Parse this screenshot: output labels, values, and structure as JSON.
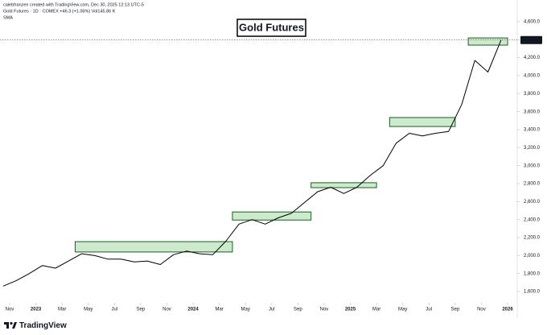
{
  "header": {
    "author_line": "calebfranzen created with TradingView.com, Dec 30, 2025 12:13 UTC-5",
    "symbol_line": "Gold Futures · 1D · COMEX  +46.3 (+1.06%)  Vol145.86 K",
    "indicator": "SMA"
  },
  "footer": {
    "brand": "TradingView"
  },
  "chart_data": {
    "type": "line",
    "title": "Gold Futures",
    "x": [
      "2022-10",
      "2022-11",
      "2022-12",
      "2023-01",
      "2023-02",
      "2023-03",
      "2023-04",
      "2023-05",
      "2023-06",
      "2023-07",
      "2023-08",
      "2023-09",
      "2023-10",
      "2023-11",
      "2023-12",
      "2024-01",
      "2024-02",
      "2024-03",
      "2024-04",
      "2024-05",
      "2024-06",
      "2024-07",
      "2024-08",
      "2024-09",
      "2024-10",
      "2024-11",
      "2024-12",
      "2025-01",
      "2025-02",
      "2025-03",
      "2025-04",
      "2025-05",
      "2025-06",
      "2025-07",
      "2025-08",
      "2025-09",
      "2025-10",
      "2025-11",
      "2025-12"
    ],
    "series": [
      {
        "name": "Gold Futures",
        "color": "#000000",
        "values": [
          1660,
          1720,
          1800,
          1890,
          1860,
          1940,
          2020,
          2000,
          1960,
          1960,
          1930,
          1940,
          1900,
          2010,
          2050,
          2020,
          2010,
          2160,
          2350,
          2400,
          2350,
          2420,
          2470,
          2590,
          2710,
          2760,
          2690,
          2760,
          2890,
          3000,
          3250,
          3360,
          3330,
          3360,
          3380,
          3680,
          4170,
          4040,
          4396.5
        ]
      }
    ],
    "zones": [
      {
        "x": [
          "2023-04",
          "2024-04"
        ],
        "y": [
          2040,
          2155
        ]
      },
      {
        "x": [
          "2024-04",
          "2024-10"
        ],
        "y": [
          2395,
          2485
        ]
      },
      {
        "x": [
          "2024-10",
          "2025-03"
        ],
        "y": [
          2755,
          2810
        ]
      },
      {
        "x": [
          "2025-04",
          "2025-09"
        ],
        "y": [
          3435,
          3535
        ]
      },
      {
        "x": [
          "2025-10",
          "2026-01"
        ],
        "y": [
          4340,
          4420
        ]
      }
    ],
    "zone_color": "#4caf50",
    "last_value": {
      "value": 4396.5,
      "label": "4,396.5"
    },
    "xlim": [
      "2022-11",
      "2026-01"
    ],
    "xticks": [
      {
        "value": "2022-11",
        "label": "Nov"
      },
      {
        "value": "2023-01",
        "label": "2023"
      },
      {
        "value": "2023-03",
        "label": "Mar"
      },
      {
        "value": "2023-05",
        "label": "May"
      },
      {
        "value": "2023-07",
        "label": "Jul"
      },
      {
        "value": "2023-09",
        "label": "Sep"
      },
      {
        "value": "2023-11",
        "label": "Nov"
      },
      {
        "value": "2024-01",
        "label": "2024"
      },
      {
        "value": "2024-03",
        "label": "Mar"
      },
      {
        "value": "2024-05",
        "label": "May"
      },
      {
        "value": "2024-07",
        "label": "Jul"
      },
      {
        "value": "2024-09",
        "label": "Sep"
      },
      {
        "value": "2024-11",
        "label": "Nov"
      },
      {
        "value": "2025-01",
        "label": "2025"
      },
      {
        "value": "2025-03",
        "label": "Mar"
      },
      {
        "value": "2025-05",
        "label": "May"
      },
      {
        "value": "2025-07",
        "label": "Jul"
      },
      {
        "value": "2025-09",
        "label": "Sep"
      },
      {
        "value": "2025-11",
        "label": "Nov"
      },
      {
        "value": "2026-01",
        "label": "2026"
      }
    ],
    "ylim": [
      1484,
      4770
    ],
    "yticks": [
      {
        "value": 1600,
        "label": "1,600.0"
      },
      {
        "value": 1800,
        "label": "1,800.0"
      },
      {
        "value": 2000,
        "label": "2,000.0"
      },
      {
        "value": 2200,
        "label": "2,200.0"
      },
      {
        "value": 2400,
        "label": "2,400.0"
      },
      {
        "value": 2600,
        "label": "2,600.0"
      },
      {
        "value": 2800,
        "label": "2,800.0"
      },
      {
        "value": 3000,
        "label": "3,000.0"
      },
      {
        "value": 3200,
        "label": "3,200.0"
      },
      {
        "value": 3400,
        "label": "3,400.0"
      },
      {
        "value": 3600,
        "label": "3,600.0"
      },
      {
        "value": 3800,
        "label": "3,800.0"
      },
      {
        "value": 4000,
        "label": "4,000.0"
      },
      {
        "value": 4200,
        "label": "4,200.0"
      },
      {
        "value": 4400,
        "label": "4,400.0"
      },
      {
        "value": 4600,
        "label": "4,600.0"
      }
    ],
    "grid": false
  }
}
